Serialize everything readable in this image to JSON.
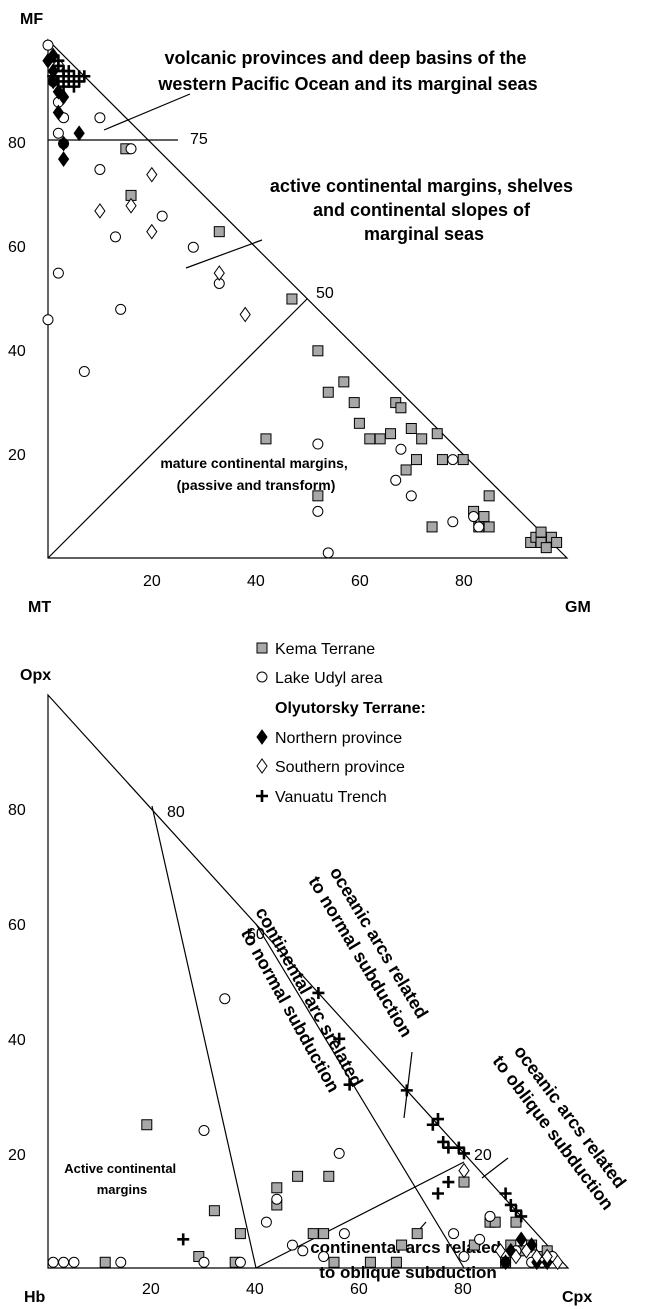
{
  "chart_data": [
    {
      "type": "scatter",
      "subtype": "ternary",
      "corners": {
        "top": "MF",
        "left": "MT",
        "right": "GM"
      },
      "x_ticks": [
        "20",
        "40",
        "60",
        "80"
      ],
      "y_ticks": [
        "20",
        "40",
        "60",
        "80"
      ],
      "boundary_labels": [
        "75",
        "50"
      ],
      "fields": [
        {
          "id": "field-western-pacific",
          "lines": [
            "volcanic provinces and deep basins of the",
            "western Pacific Ocean and its marginal seas"
          ]
        },
        {
          "id": "field-active-margins",
          "lines": [
            "active continental margins, shelves",
            "and continental slopes of",
            "marginal seas"
          ]
        },
        {
          "id": "field-mature-margins",
          "lines": [
            "mature continental margins,",
            "(passive and transform)"
          ]
        }
      ],
      "series": [
        {
          "name": "Kema Terrane",
          "marker": "square",
          "points": [
            [
              15,
              79
            ],
            [
              16,
              70
            ],
            [
              33,
              63
            ],
            [
              47,
              50
            ],
            [
              52,
              40
            ],
            [
              57,
              34
            ],
            [
              59,
              30
            ],
            [
              60,
              26
            ],
            [
              62,
              23
            ],
            [
              64,
              23
            ],
            [
              67,
              30
            ],
            [
              68,
              29
            ],
            [
              66,
              24
            ],
            [
              70,
              25
            ],
            [
              72,
              23
            ],
            [
              75,
              24
            ],
            [
              71,
              19
            ],
            [
              69,
              17
            ],
            [
              76,
              19
            ],
            [
              80,
              19
            ],
            [
              82,
              9
            ],
            [
              84,
              8
            ],
            [
              85,
              6
            ],
            [
              85,
              12
            ],
            [
              93,
              3
            ],
            [
              94,
              4
            ],
            [
              95,
              3
            ],
            [
              96,
              2
            ],
            [
              97,
              4
            ],
            [
              98,
              3
            ],
            [
              95,
              5
            ],
            [
              54,
              32
            ],
            [
              42,
              23
            ],
            [
              52,
              12
            ],
            [
              74,
              6
            ],
            [
              83,
              6
            ]
          ]
        },
        {
          "name": "Lake Udyl area",
          "marker": "circle",
          "points": [
            [
              0,
              99
            ],
            [
              2,
              95
            ],
            [
              1,
              92
            ],
            [
              2,
              88
            ],
            [
              3,
              85
            ],
            [
              2,
              82
            ],
            [
              3,
              80
            ],
            [
              10,
              85
            ],
            [
              16,
              79
            ],
            [
              10,
              75
            ],
            [
              22,
              66
            ],
            [
              28,
              60
            ],
            [
              33,
              53
            ],
            [
              13,
              62
            ],
            [
              2,
              55
            ],
            [
              0,
              46
            ],
            [
              14,
              48
            ],
            [
              7,
              36
            ],
            [
              52,
              22
            ],
            [
              52,
              9
            ],
            [
              54,
              1
            ],
            [
              68,
              21
            ],
            [
              67,
              15
            ],
            [
              70,
              12
            ],
            [
              78,
              19
            ],
            [
              78,
              7
            ],
            [
              82,
              8
            ],
            [
              83,
              6
            ]
          ]
        },
        {
          "name": "Northern province",
          "marker": "diamond-filled",
          "points": [
            [
              0,
              96
            ],
            [
              1,
              94
            ],
            [
              1,
              92
            ],
            [
              2,
              90
            ],
            [
              2,
              86
            ],
            [
              3,
              80
            ],
            [
              3,
              77
            ],
            [
              6,
              82
            ],
            [
              3,
              89
            ],
            [
              1,
              97
            ]
          ]
        },
        {
          "name": "Southern province",
          "marker": "diamond-open",
          "points": [
            [
              10,
              67
            ],
            [
              16,
              68
            ],
            [
              20,
              74
            ],
            [
              20,
              63
            ],
            [
              33,
              55
            ],
            [
              38,
              47
            ]
          ]
        },
        {
          "name": "Vanuatu Trench",
          "marker": "plus",
          "points": [
            [
              1,
              97
            ],
            [
              2,
              96
            ],
            [
              2,
              95
            ],
            [
              3,
              94
            ],
            [
              3,
              93
            ],
            [
              4,
              94
            ],
            [
              5,
              93
            ],
            [
              6,
              92
            ],
            [
              6,
              93
            ],
            [
              7,
              93
            ],
            [
              1,
              93
            ],
            [
              2,
              92
            ],
            [
              3,
              91
            ],
            [
              4,
              92
            ],
            [
              5,
              91
            ]
          ]
        }
      ]
    },
    {
      "type": "scatter",
      "subtype": "ternary",
      "corners": {
        "top": "Opx",
        "left": "Hb",
        "right": "Cpx"
      },
      "x_ticks": [
        "20",
        "40",
        "60",
        "80"
      ],
      "y_ticks": [
        "20",
        "40",
        "60",
        "80"
      ],
      "boundary_labels": [
        "80",
        "60",
        "20"
      ],
      "fields": [
        {
          "id": "field-active-continental",
          "lines": [
            "Active continental",
            "margins"
          ]
        },
        {
          "id": "field-continental-normal",
          "lines": [
            "continental arc srelated",
            "to normal subduction"
          ]
        },
        {
          "id": "field-oceanic-normal",
          "lines": [
            "oceanic arcs related",
            "to normal subduction"
          ]
        },
        {
          "id": "field-oceanic-oblique",
          "lines": [
            "oceanic arcs related",
            "to oblique subduction"
          ]
        },
        {
          "id": "field-continental-oblique",
          "lines": [
            "continental arcs related",
            "to oblique subduction"
          ]
        }
      ],
      "series": [
        {
          "name": "Kema Terrane",
          "marker": "square",
          "points": [
            [
              19,
              25
            ],
            [
              11,
              1
            ],
            [
              29,
              2
            ],
            [
              32,
              10
            ],
            [
              36,
              1
            ],
            [
              37,
              6
            ],
            [
              44,
              14
            ],
            [
              44,
              11
            ],
            [
              48,
              16
            ],
            [
              51,
              6
            ],
            [
              53,
              6
            ],
            [
              54,
              16
            ],
            [
              55,
              1
            ],
            [
              62,
              1
            ],
            [
              67,
              1
            ],
            [
              68,
              4
            ],
            [
              71,
              6
            ],
            [
              80,
              15
            ],
            [
              82,
              4
            ],
            [
              85,
              8
            ],
            [
              86,
              8
            ],
            [
              88,
              1
            ],
            [
              89,
              4
            ],
            [
              90,
              8
            ],
            [
              91,
              3
            ],
            [
              93,
              4
            ],
            [
              95,
              2
            ],
            [
              96,
              3
            ]
          ]
        },
        {
          "name": "Lake Udyl area",
          "marker": "circle",
          "points": [
            [
              1,
              1
            ],
            [
              3,
              1
            ],
            [
              5,
              1
            ],
            [
              14,
              1
            ],
            [
              30,
              24
            ],
            [
              30,
              1
            ],
            [
              34,
              47
            ],
            [
              37,
              1
            ],
            [
              42,
              8
            ],
            [
              44,
              12
            ],
            [
              47,
              4
            ],
            [
              49,
              3
            ],
            [
              53,
              2
            ],
            [
              56,
              20
            ],
            [
              57,
              6
            ],
            [
              78,
              6
            ],
            [
              80,
              2
            ],
            [
              83,
              5
            ],
            [
              85,
              9
            ],
            [
              88,
              1
            ],
            [
              90,
              3
            ],
            [
              93,
              1
            ],
            [
              95,
              1
            ],
            [
              97,
              2
            ]
          ]
        },
        {
          "name": "Northern province",
          "marker": "diamond-filled",
          "points": [
            [
              88,
              1
            ],
            [
              89,
              3
            ],
            [
              91,
              5
            ],
            [
              93,
              4
            ],
            [
              94,
              1
            ],
            [
              96,
              1
            ]
          ]
        },
        {
          "name": "Southern province",
          "marker": "diamond-open",
          "points": [
            [
              80,
              17
            ],
            [
              87,
              3
            ],
            [
              90,
              2
            ],
            [
              92,
              3
            ],
            [
              94,
              2
            ],
            [
              96,
              2
            ],
            [
              98,
              1
            ]
          ]
        },
        {
          "name": "Vanuatu Trench",
          "marker": "plus",
          "points": [
            [
              26,
              5
            ],
            [
              52,
              48
            ],
            [
              56,
              40
            ],
            [
              58,
              32
            ],
            [
              69,
              31
            ],
            [
              74,
              25
            ],
            [
              75,
              26
            ],
            [
              76,
              22
            ],
            [
              77,
              21
            ],
            [
              79,
              21
            ],
            [
              80,
              20
            ],
            [
              75,
              13
            ],
            [
              77,
              15
            ],
            [
              88,
              13
            ],
            [
              89,
              11
            ],
            [
              90,
              10
            ],
            [
              91,
              9
            ]
          ]
        }
      ]
    }
  ],
  "legend": {
    "items": [
      {
        "label": "Kema Terrane",
        "marker": "square"
      },
      {
        "label": "Lake Udyl area",
        "marker": "circle"
      },
      {
        "label": "Olyutorsky Terrane:",
        "marker": "none",
        "bold": true
      },
      {
        "label": "Northern province",
        "marker": "diamond-filled"
      },
      {
        "label": "Southern province",
        "marker": "diamond-open"
      },
      {
        "label": "Vanuatu Trench",
        "marker": "plus"
      }
    ]
  },
  "colors": {
    "square_fill": "#a8a8a8",
    "ink": "#000000"
  }
}
